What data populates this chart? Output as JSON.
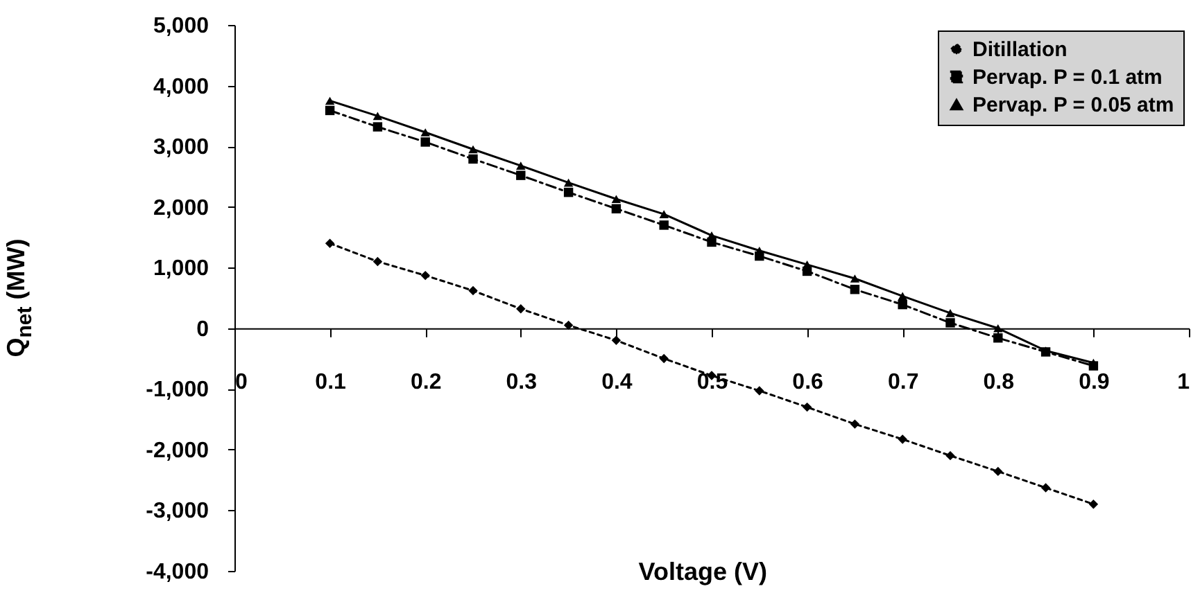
{
  "chart_data": {
    "type": "line",
    "xlabel": "Voltage (V)",
    "ylabel": "Q$_{net}$ (MW)",
    "xlim": [
      0,
      1
    ],
    "xticks": [
      0,
      0.1,
      0.2,
      0.3,
      0.4,
      0.5,
      0.6,
      0.7,
      0.8,
      0.9,
      1
    ],
    "ylim": [
      -4000,
      5000
    ],
    "yticks": [
      {
        "value": -4000,
        "label": "-4,000"
      },
      {
        "value": -3000,
        "label": "-3,000"
      },
      {
        "value": -2000,
        "label": "-2,000"
      },
      {
        "value": -1000,
        "label": "-1,000"
      },
      0,
      {
        "value": 1000,
        "label": "1,000"
      },
      {
        "value": 2000,
        "label": "2,000"
      },
      {
        "value": 3000,
        "label": "3,000"
      },
      {
        "value": 4000,
        "label": "4,000"
      },
      {
        "value": 5000,
        "label": "5,000"
      }
    ],
    "x": [
      0.1,
      0.15,
      0.2,
      0.25,
      0.3,
      0.35,
      0.4,
      0.45,
      0.5,
      0.55,
      0.6,
      0.65,
      0.7,
      0.75,
      0.8,
      0.85,
      0.9
    ],
    "grid": false,
    "legend": "top right",
    "series": [
      {
        "name": "Ditillation",
        "color": "#000000",
        "marker": "diamond",
        "line_style": "dotted",
        "values": [
          1400,
          1100,
          870,
          620,
          320,
          50,
          -200,
          -500,
          -780,
          -1030,
          -1300,
          -1580,
          -1830,
          -2100,
          -2360,
          -2630,
          -2900
        ]
      },
      {
        "name": "Pervap. P = 0.1 atm",
        "color": "#000000",
        "marker": "square",
        "line_style": "dashed",
        "values": [
          3590,
          3320,
          3070,
          2790,
          2520,
          2240,
          1970,
          1700,
          1420,
          1190,
          940,
          640,
          390,
          90,
          -160,
          -390,
          -620
        ]
      },
      {
        "name": "Pervap. P = 0.05 atm",
        "color": "#000000",
        "marker": "triangle",
        "line_style": "solid",
        "values": [
          3750,
          3500,
          3230,
          2950,
          2680,
          2400,
          2130,
          1880,
          1530,
          1280,
          1050,
          820,
          530,
          250,
          0,
          -370,
          -570
        ]
      }
    ]
  }
}
